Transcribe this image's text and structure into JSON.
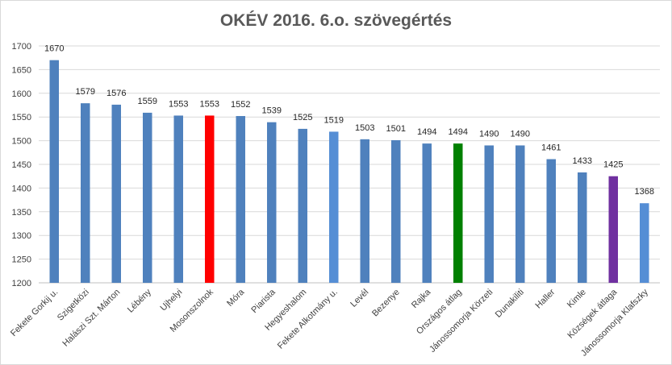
{
  "chart_data": {
    "type": "bar",
    "title": "OKÉV 2016. 6.o. szövegértés",
    "xlabel": "",
    "ylabel": "",
    "ylim": [
      1200,
      1700
    ],
    "ytick_step": 50,
    "grid": true,
    "legend": "none",
    "categories": [
      "Fekete Gorkij u.",
      "Szigetközi",
      "Halászi Szt. Márton",
      "Lébény",
      "Ujhelyi",
      "Mosonszolnok",
      "Móra",
      "Piarista",
      "Hegyeshalom",
      "Fekete Alkotmány u.",
      "Levél",
      "Bezenye",
      "Rajka",
      "Országos átlag",
      "Jánossomorja Körzeti",
      "Dunakiliti",
      "Haller",
      "Kimle",
      "Községek átlaga",
      "Jánossomorja Klafszky"
    ],
    "values": [
      1670,
      1579,
      1576,
      1559,
      1553,
      1553,
      1552,
      1539,
      1525,
      1519,
      1503,
      1501,
      1494,
      1494,
      1490,
      1490,
      1461,
      1433,
      1425,
      1368
    ],
    "colors": [
      "#4f81bd",
      "#4f81bd",
      "#4f81bd",
      "#4f81bd",
      "#4f81bd",
      "#ff0000",
      "#4f81bd",
      "#4f81bd",
      "#4f81bd",
      "#558ed5",
      "#4f81bd",
      "#4f81bd",
      "#4f81bd",
      "#008000",
      "#4f81bd",
      "#4f81bd",
      "#4f81bd",
      "#4f81bd",
      "#7030a0",
      "#558ed5"
    ]
  }
}
